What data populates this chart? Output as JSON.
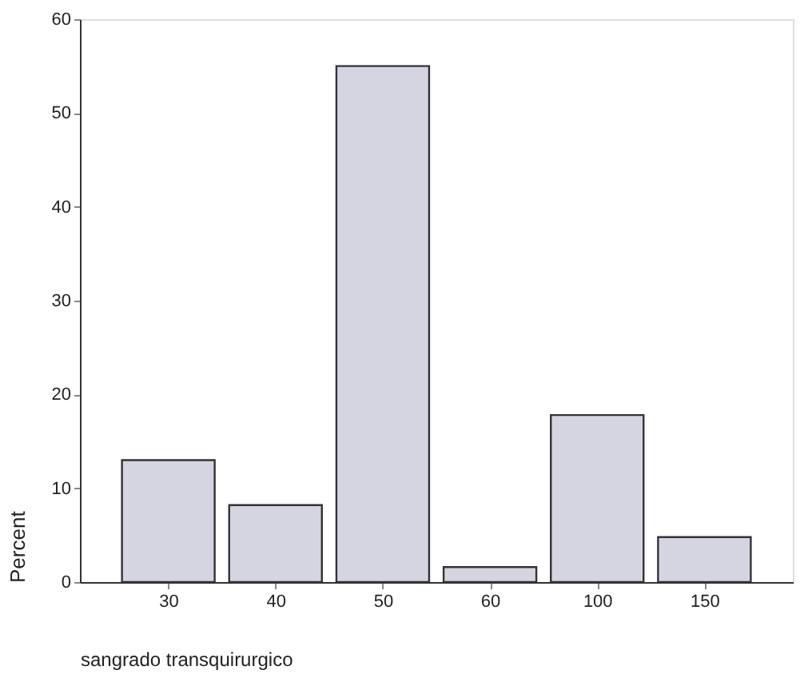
{
  "chart_data": {
    "type": "bar",
    "xlabel": "sangrado transquirurgico",
    "ylabel": "Percent",
    "categories": [
      "30",
      "40",
      "50",
      "60",
      "100",
      "150"
    ],
    "values": [
      13.0,
      8.2,
      55.0,
      1.6,
      17.8,
      4.8
    ],
    "color": "#d5d5e2",
    "ylim": [
      0,
      60
    ],
    "yticks": [
      0,
      10,
      20,
      30,
      40,
      50,
      60
    ],
    "grid": false
  }
}
